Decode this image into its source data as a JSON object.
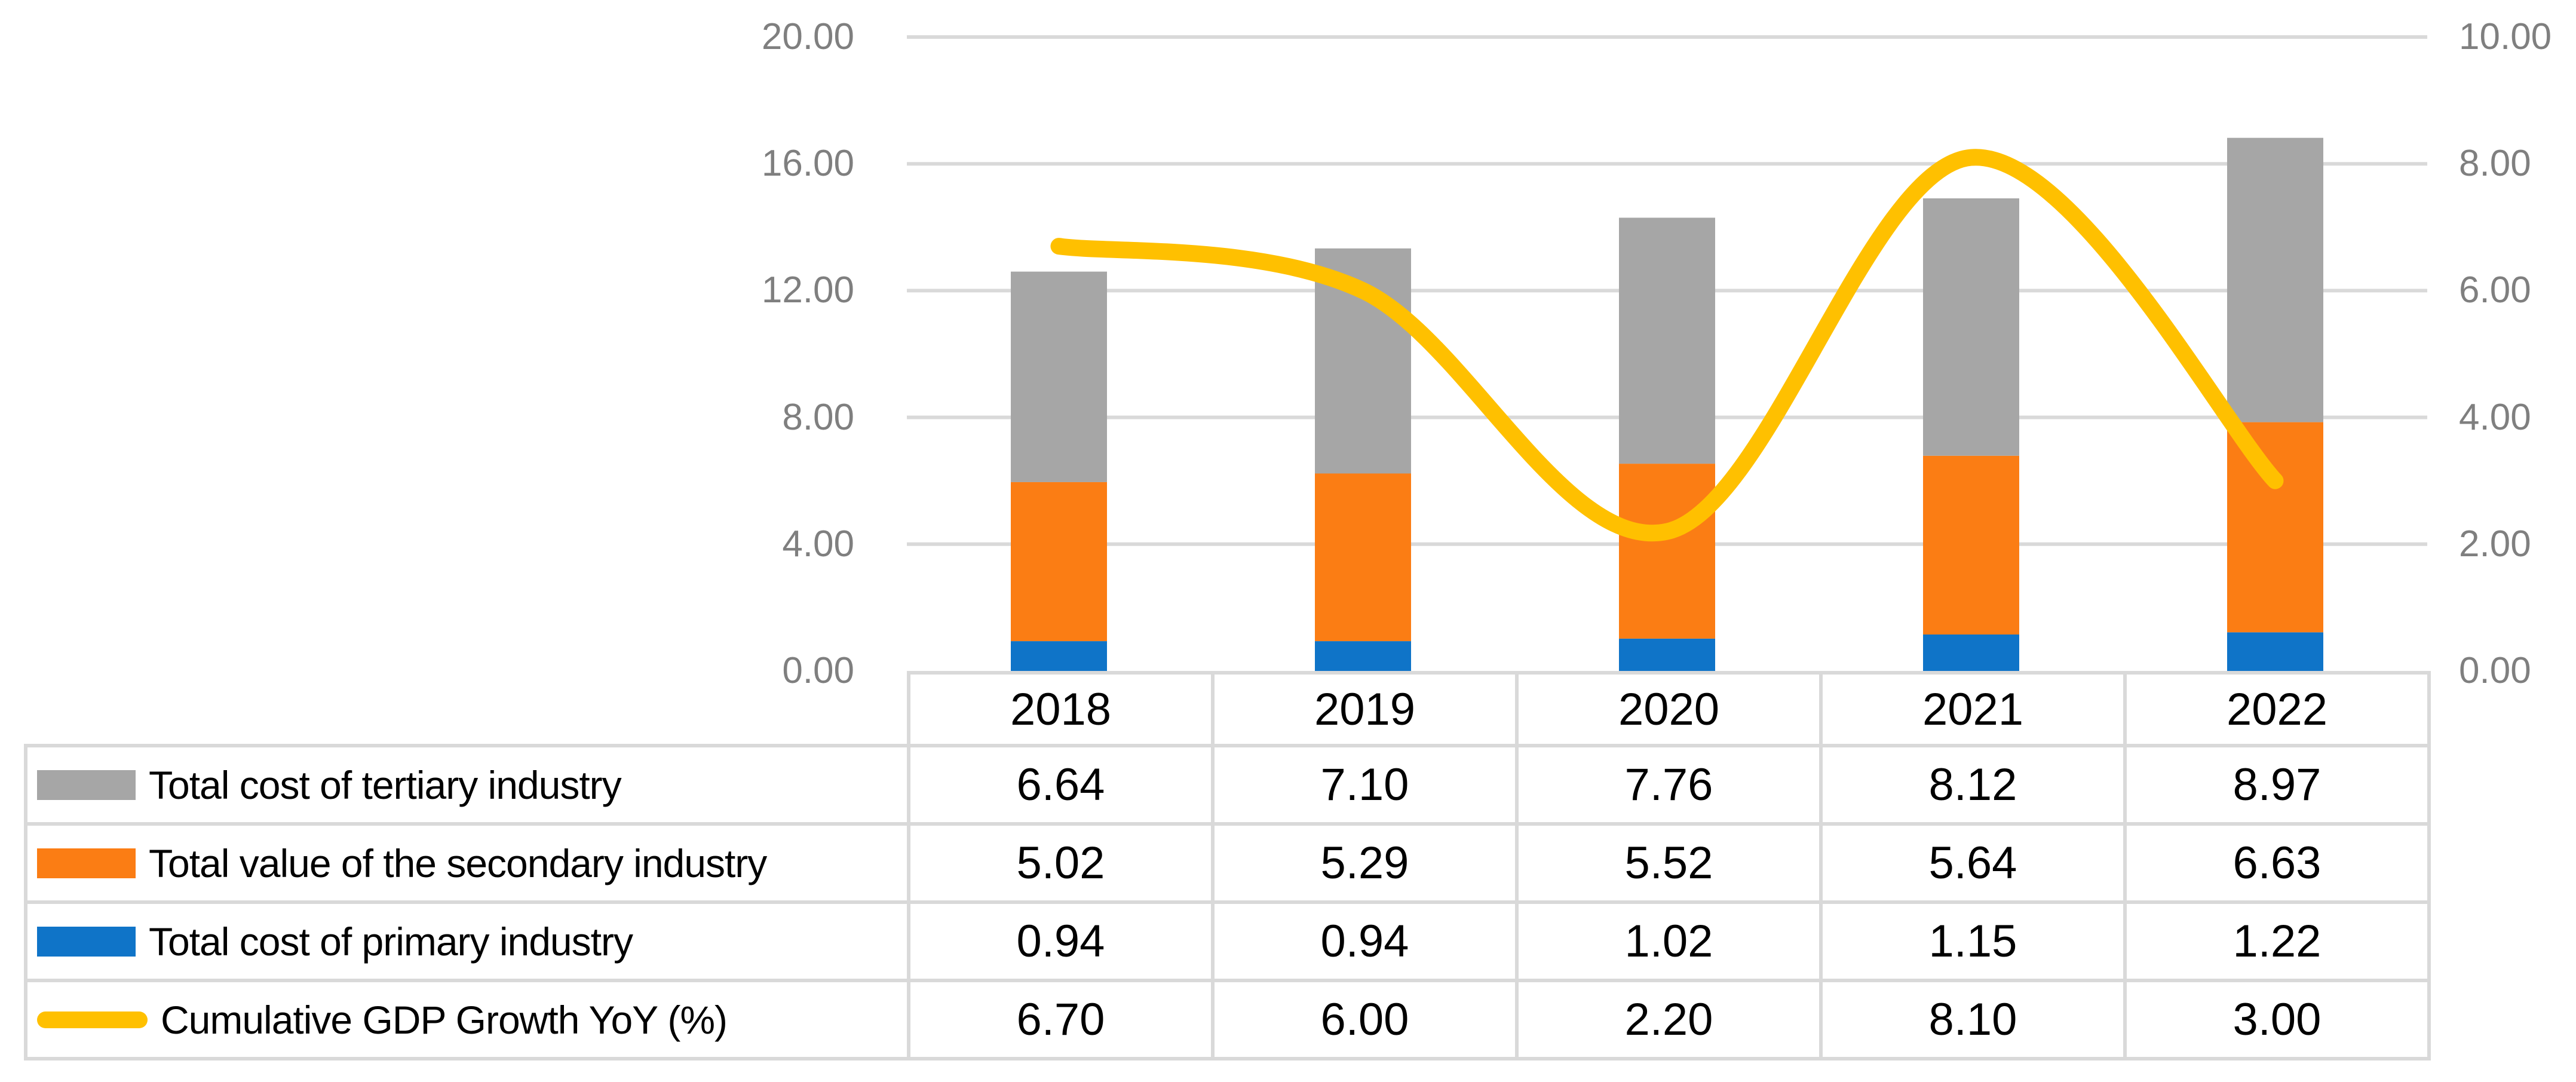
{
  "chart_data": {
    "type": "combo-stacked-bar-line",
    "title": "",
    "categories": [
      "2018",
      "2019",
      "2020",
      "2021",
      "2022"
    ],
    "left_axis": {
      "min": 0,
      "max": 20,
      "tick_step": 4,
      "tick_labels": [
        "20.00",
        "16.00",
        "12.00",
        "8.00",
        "4.00",
        "0.00"
      ]
    },
    "right_axis": {
      "min": 0,
      "max": 10,
      "tick_step": 2,
      "tick_labels": [
        "10.00",
        "8.00",
        "6.00",
        "4.00",
        "2.00",
        "0.00"
      ]
    },
    "grid_on": true,
    "legend_position": "table-left",
    "series": [
      {
        "id": "tertiary",
        "label": "Total cost of tertiary industry",
        "type": "bar",
        "axis": "left",
        "color": "#a6a6a6",
        "values": [
          6.64,
          7.1,
          7.76,
          8.12,
          8.97
        ],
        "display": [
          "6.64",
          "7.10",
          "7.76",
          "8.12",
          "8.97"
        ]
      },
      {
        "id": "secondary",
        "label": "Total value of the secondary industry",
        "type": "bar",
        "axis": "left",
        "color": "#fb7d14",
        "values": [
          5.02,
          5.29,
          5.52,
          5.64,
          6.63
        ],
        "display": [
          "5.02",
          "5.29",
          "5.52",
          "5.64",
          "6.63"
        ]
      },
      {
        "id": "primary",
        "label": "Total cost of primary industry",
        "type": "bar",
        "axis": "left",
        "color": "#0f74c8",
        "values": [
          0.94,
          0.94,
          1.02,
          1.15,
          1.22
        ],
        "display": [
          "0.94",
          "0.94",
          "1.02",
          "1.15",
          "1.22"
        ]
      },
      {
        "id": "gdp",
        "label": "Cumulative GDP Growth YoY (%)",
        "type": "line",
        "axis": "right",
        "color": "#ffc000",
        "values": [
          6.7,
          6.0,
          2.2,
          8.1,
          3.0
        ],
        "display": [
          "6.70",
          "6.00",
          "2.20",
          "8.10",
          "3.00"
        ]
      }
    ],
    "stack_bottom_to_top": [
      "primary",
      "secondary",
      "tertiary"
    ],
    "colors": {
      "gridline": "#d9d9d9",
      "table_border": "#d9d9d9",
      "axis_text": "#7f7f7f",
      "table_text": "#000000"
    }
  }
}
